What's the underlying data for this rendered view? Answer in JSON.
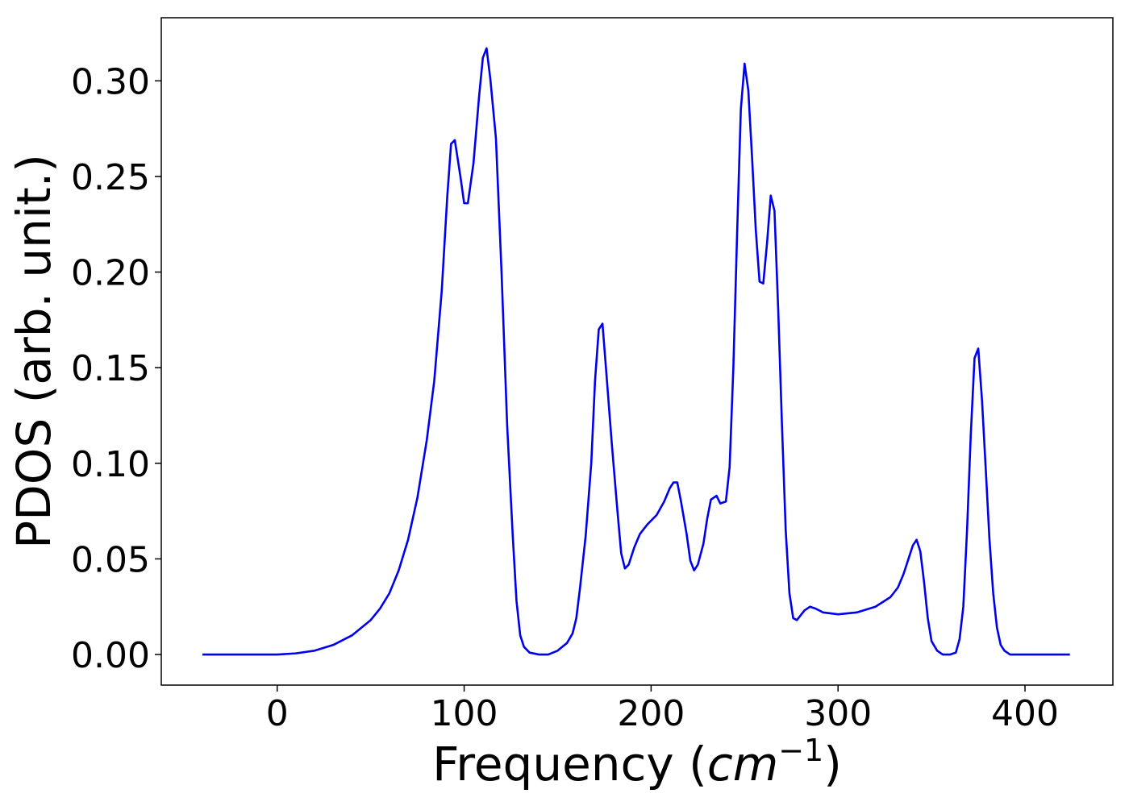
{
  "chart_data": {
    "type": "line",
    "title": "",
    "xlabel_prefix": "Frequency (",
    "xlabel_math": "cm",
    "xlabel_superscript": "−1",
    "xlabel_suffix": ")",
    "ylabel": "PDOS (arb. unit.)",
    "xlim": [
      -62,
      447
    ],
    "ylim": [
      -0.016,
      0.333
    ],
    "xticks": [
      0,
      100,
      200,
      300,
      400
    ],
    "xtick_labels": [
      "0",
      "100",
      "200",
      "300",
      "400"
    ],
    "yticks": [
      0.0,
      0.05,
      0.1,
      0.15,
      0.2,
      0.25,
      0.3
    ],
    "ytick_labels": [
      "0.00",
      "0.05",
      "0.10",
      "0.15",
      "0.20",
      "0.25",
      "0.30"
    ],
    "grid": false,
    "legend": "none",
    "series": [
      {
        "color": "#0000ee",
        "points": [
          [
            -40,
            0.0
          ],
          [
            0,
            0.0
          ],
          [
            10,
            0.0006
          ],
          [
            20,
            0.002
          ],
          [
            30,
            0.005
          ],
          [
            40,
            0.01
          ],
          [
            50,
            0.018
          ],
          [
            55,
            0.024
          ],
          [
            60,
            0.032
          ],
          [
            65,
            0.044
          ],
          [
            70,
            0.06
          ],
          [
            75,
            0.082
          ],
          [
            80,
            0.112
          ],
          [
            84,
            0.143
          ],
          [
            88,
            0.19
          ],
          [
            91,
            0.24
          ],
          [
            93,
            0.267
          ],
          [
            95,
            0.269
          ],
          [
            98,
            0.25
          ],
          [
            100,
            0.236
          ],
          [
            102,
            0.236
          ],
          [
            105,
            0.257
          ],
          [
            108,
            0.292
          ],
          [
            110,
            0.312
          ],
          [
            112,
            0.317
          ],
          [
            114,
            0.301
          ],
          [
            117,
            0.27
          ],
          [
            120,
            0.2
          ],
          [
            123,
            0.12
          ],
          [
            126,
            0.062
          ],
          [
            128,
            0.028
          ],
          [
            130,
            0.01
          ],
          [
            132,
            0.004
          ],
          [
            135,
            0.001
          ],
          [
            140,
            0.0
          ],
          [
            145,
            0.0
          ],
          [
            150,
            0.002
          ],
          [
            155,
            0.006
          ],
          [
            158,
            0.011
          ],
          [
            160,
            0.019
          ],
          [
            162,
            0.035
          ],
          [
            165,
            0.062
          ],
          [
            168,
            0.1
          ],
          [
            170,
            0.143
          ],
          [
            172,
            0.17
          ],
          [
            174,
            0.173
          ],
          [
            176,
            0.148
          ],
          [
            179,
            0.11
          ],
          [
            182,
            0.075
          ],
          [
            184,
            0.053
          ],
          [
            186,
            0.045
          ],
          [
            188,
            0.047
          ],
          [
            191,
            0.056
          ],
          [
            194,
            0.063
          ],
          [
            198,
            0.068
          ],
          [
            203,
            0.073
          ],
          [
            207,
            0.08
          ],
          [
            210,
            0.087
          ],
          [
            212,
            0.09
          ],
          [
            214,
            0.09
          ],
          [
            216,
            0.08
          ],
          [
            219,
            0.063
          ],
          [
            221,
            0.049
          ],
          [
            223,
            0.044
          ],
          [
            225,
            0.047
          ],
          [
            228,
            0.058
          ],
          [
            230,
            0.071
          ],
          [
            232,
            0.081
          ],
          [
            235,
            0.083
          ],
          [
            237,
            0.079
          ],
          [
            240,
            0.08
          ],
          [
            242,
            0.098
          ],
          [
            244,
            0.15
          ],
          [
            246,
            0.22
          ],
          [
            248,
            0.285
          ],
          [
            250,
            0.309
          ],
          [
            252,
            0.295
          ],
          [
            254,
            0.26
          ],
          [
            256,
            0.222
          ],
          [
            258,
            0.195
          ],
          [
            260,
            0.194
          ],
          [
            262,
            0.215
          ],
          [
            264,
            0.24
          ],
          [
            266,
            0.232
          ],
          [
            268,
            0.18
          ],
          [
            270,
            0.12
          ],
          [
            272,
            0.065
          ],
          [
            274,
            0.032
          ],
          [
            276,
            0.019
          ],
          [
            278,
            0.018
          ],
          [
            282,
            0.023
          ],
          [
            285,
            0.025
          ],
          [
            288,
            0.024
          ],
          [
            292,
            0.022
          ],
          [
            300,
            0.021
          ],
          [
            310,
            0.022
          ],
          [
            320,
            0.025
          ],
          [
            328,
            0.03
          ],
          [
            332,
            0.035
          ],
          [
            335,
            0.042
          ],
          [
            338,
            0.051
          ],
          [
            340,
            0.057
          ],
          [
            342,
            0.06
          ],
          [
            344,
            0.054
          ],
          [
            346,
            0.038
          ],
          [
            348,
            0.019
          ],
          [
            350,
            0.007
          ],
          [
            353,
            0.002
          ],
          [
            356,
            0.0
          ],
          [
            360,
            0.0
          ],
          [
            363,
            0.001
          ],
          [
            365,
            0.008
          ],
          [
            367,
            0.025
          ],
          [
            369,
            0.065
          ],
          [
            371,
            0.115
          ],
          [
            373,
            0.155
          ],
          [
            375,
            0.16
          ],
          [
            377,
            0.133
          ],
          [
            379,
            0.097
          ],
          [
            381,
            0.06
          ],
          [
            383,
            0.032
          ],
          [
            385,
            0.014
          ],
          [
            387,
            0.005
          ],
          [
            389,
            0.002
          ],
          [
            392,
            0.0
          ],
          [
            400,
            0.0
          ],
          [
            424,
            0.0
          ]
        ]
      }
    ]
  }
}
